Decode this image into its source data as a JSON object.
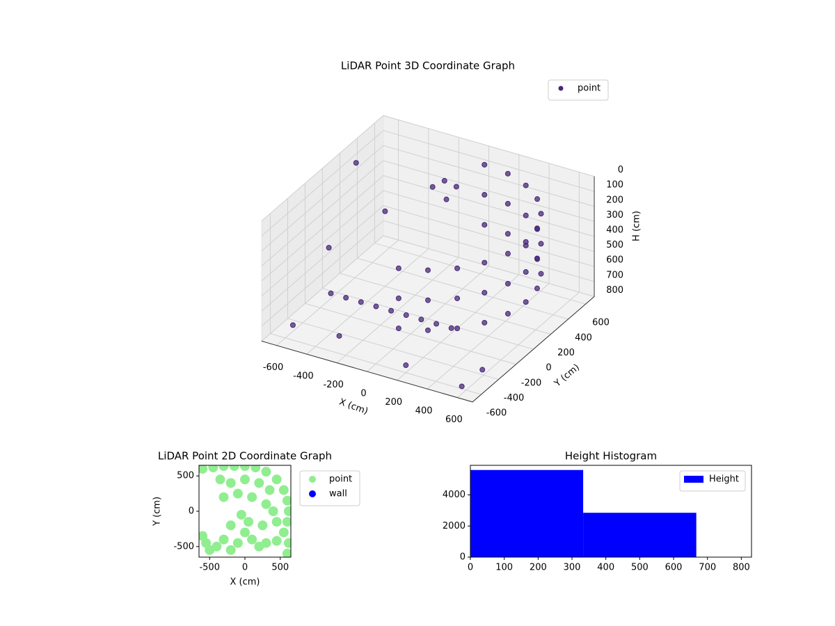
{
  "chart_data": [
    {
      "type": "scatter3d",
      "title": "LiDAR Point 3D Coordinate Graph",
      "xlabel": "X (cm)",
      "ylabel": "Y (cm)",
      "zlabel": "H (cm)",
      "xlim": [
        -700,
        700
      ],
      "ylim": [
        -700,
        700
      ],
      "zlim": [
        800,
        0
      ],
      "xticks": [
        -600,
        -400,
        -200,
        0,
        200,
        400,
        600
      ],
      "yticks": [
        -600,
        -400,
        -200,
        0,
        200,
        400,
        600
      ],
      "zticks": [
        0,
        100,
        200,
        300,
        400,
        500,
        600,
        700,
        800
      ],
      "grid": true,
      "legend": "upper right",
      "series": [
        {
          "name": "point",
          "color": "#482878",
          "x": [
            168,
            325,
            460,
            563,
            628,
            650,
            628,
            563,
            460,
            325,
            168,
            0,
            168,
            325,
            460,
            563,
            628,
            650,
            628,
            563,
            460,
            325,
            168,
            0,
            168,
            325,
            460,
            563,
            628,
            650,
            628,
            563,
            460,
            325,
            168,
            0,
            -500,
            -400,
            -300,
            -200,
            -100,
            0,
            100,
            200,
            300,
            -150,
            -100,
            -200,
            -120,
            -650,
            -600,
            -550,
            600,
            650,
            200,
            -300,
            -400
          ],
          "y": [
            -628,
            -563,
            -460,
            -325,
            -168,
            0,
            168,
            325,
            460,
            563,
            628,
            650,
            -628,
            -563,
            -460,
            -325,
            -168,
            0,
            168,
            325,
            460,
            563,
            628,
            650,
            -628,
            -563,
            -460,
            -325,
            -168,
            0,
            168,
            325,
            460,
            563,
            628,
            650,
            -250,
            -250,
            -250,
            -250,
            -250,
            -250,
            -250,
            -250,
            -250,
            450,
            500,
            400,
            420,
            300,
            -100,
            -600,
            -650,
            -500,
            -600,
            -500,
            200
          ],
          "z": [
            100,
            100,
            100,
            100,
            100,
            100,
            100,
            100,
            100,
            100,
            100,
            100,
            300,
            300,
            300,
            300,
            300,
            300,
            300,
            300,
            300,
            300,
            300,
            300,
            500,
            500,
            500,
            500,
            500,
            500,
            500,
            500,
            500,
            500,
            500,
            500,
            650,
            650,
            650,
            650,
            650,
            650,
            650,
            650,
            650,
            150,
            200,
            180,
            250,
            100,
            450,
            700,
            750,
            700,
            750,
            750,
            300
          ]
        }
      ]
    },
    {
      "type": "scatter",
      "title": "LiDAR Point 2D Coordinate Graph",
      "xlabel": "X (cm)",
      "ylabel": "Y (cm)",
      "xlim": [
        -650,
        650
      ],
      "ylim": [
        -650,
        650
      ],
      "xticks": [
        -500,
        0,
        500
      ],
      "yticks": [
        -500,
        0,
        500
      ],
      "legend": "right",
      "series": [
        {
          "name": "point",
          "color": "#90ee90",
          "x": [
            -600,
            -450,
            -300,
            -150,
            0,
            150,
            300,
            450,
            550,
            600,
            620,
            600,
            550,
            450,
            -350,
            -200,
            0,
            200,
            350,
            -100,
            100,
            300,
            400,
            450,
            -300,
            -600,
            -550,
            -500,
            -400,
            -300,
            -200,
            -100,
            0,
            50,
            100,
            200,
            300,
            250,
            -200,
            -50,
            650,
            600,
            620
          ],
          "y": [
            600,
            620,
            640,
            640,
            640,
            620,
            560,
            450,
            300,
            150,
            0,
            -150,
            -300,
            -420,
            450,
            400,
            450,
            400,
            300,
            250,
            200,
            100,
            0,
            -150,
            200,
            -350,
            -450,
            -550,
            -500,
            -400,
            -550,
            -450,
            -300,
            -150,
            -400,
            -500,
            -450,
            -200,
            -200,
            -50,
            0,
            -600,
            -450
          ]
        },
        {
          "name": "wall",
          "color": "#0000ff",
          "x": [],
          "y": []
        }
      ]
    },
    {
      "type": "histogram",
      "title": "Height Histogram",
      "xlim": [
        0,
        830
      ],
      "ylim": [
        0,
        5900
      ],
      "xticks": [
        0,
        100,
        200,
        300,
        400,
        500,
        600,
        700,
        800
      ],
      "yticks": [
        0,
        2000,
        4000
      ],
      "legend": "upper right",
      "bins": [
        0,
        333,
        667
      ],
      "series": [
        {
          "name": "Height",
          "color": "#0000ff",
          "values": [
            5600,
            2850
          ]
        }
      ]
    }
  ]
}
